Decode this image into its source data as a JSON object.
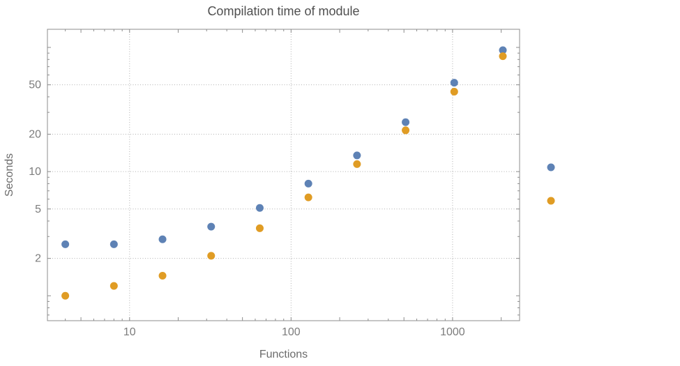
{
  "chart_data": {
    "type": "scatter",
    "title": "Compilation time of module",
    "xlabel": "Functions",
    "ylabel": "Seconds",
    "x_scale": "log",
    "y_scale": "log",
    "x": [
      4,
      8,
      16,
      32,
      64,
      128,
      256,
      512,
      1024,
      2048
    ],
    "series": [
      {
        "name": "series-blue",
        "color": "#5e82b5",
        "values": [
          2.6,
          2.6,
          2.85,
          3.6,
          5.1,
          8.0,
          13.5,
          25,
          52,
          95
        ]
      },
      {
        "name": "series-orange",
        "color": "#e09c24",
        "values": [
          1.0,
          1.2,
          1.45,
          2.1,
          3.5,
          6.2,
          11.5,
          21.5,
          44,
          85
        ]
      }
    ],
    "x_ticks": [
      10,
      100,
      1000
    ],
    "y_ticks": [
      2,
      5,
      10,
      20,
      50
    ],
    "x_range": [
      3.1,
      2600
    ],
    "y_range": [
      0.63,
      140
    ],
    "grid": "dotted",
    "legend_position": "right-of-frame",
    "legend_markers": [
      {
        "color": "#5e82b5"
      },
      {
        "color": "#e09c24"
      }
    ]
  },
  "style": {
    "grid_color": "#b0b0b0",
    "frame_color": "#8c8c8c",
    "tick_color": "#8c8c8c",
    "tick_label_color": "#7c7c7c",
    "point_diameter": 11
  }
}
